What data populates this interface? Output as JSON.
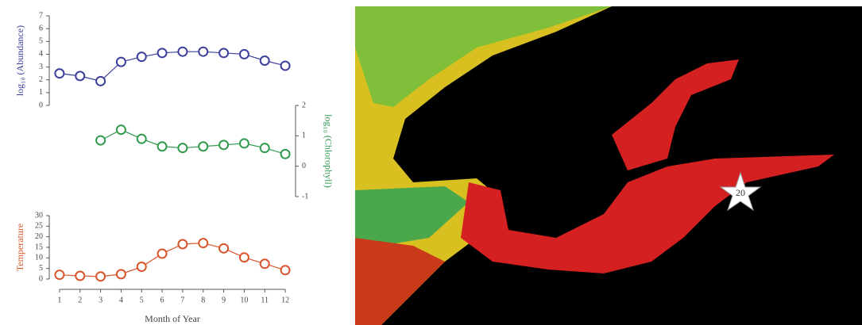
{
  "chart_data": [
    {
      "type": "line",
      "ylabel": "log₁₀ (Abundance)",
      "color": "#3b3f9c",
      "y_axis_side": "left",
      "x": [
        1,
        2,
        3,
        4,
        5,
        6,
        7,
        8,
        9,
        10,
        11,
        12
      ],
      "xlim": [
        0.5,
        12.5
      ],
      "values": [
        2.5,
        2.3,
        1.9,
        3.4,
        3.8,
        4.1,
        4.2,
        4.2,
        4.1,
        4.0,
        3.5,
        3.1
      ],
      "ylim": [
        0,
        7
      ],
      "yticks": [
        0,
        1,
        2,
        3,
        4,
        5,
        6,
        7
      ]
    },
    {
      "type": "line",
      "ylabel": "log₁₀ (Chlorophyll)",
      "color": "#2f9a4c",
      "y_axis_side": "right",
      "x": [
        1,
        2,
        3,
        4,
        5,
        6,
        7,
        8,
        9,
        10,
        11,
        12
      ],
      "xlim": [
        0.5,
        12.5
      ],
      "values": [
        null,
        null,
        0.85,
        1.2,
        0.9,
        0.65,
        0.6,
        0.65,
        0.7,
        0.75,
        0.6,
        0.4
      ],
      "ylim": [
        -1,
        2
      ],
      "yticks": [
        -1,
        0,
        1,
        2
      ]
    },
    {
      "type": "line",
      "ylabel": "Temperature",
      "xlabel": "Month of Year",
      "color": "#d9542a",
      "y_axis_side": "left",
      "x": [
        1,
        2,
        3,
        4,
        5,
        6,
        7,
        8,
        9,
        10,
        11,
        12
      ],
      "xlim": [
        0.5,
        12.5
      ],
      "xticks": [
        1,
        2,
        3,
        4,
        5,
        6,
        7,
        8,
        9,
        10,
        11,
        12
      ],
      "values": [
        2,
        1.5,
        1.2,
        2.3,
        5.8,
        12,
        16.5,
        17,
        14.5,
        10.2,
        7.2,
        4.2
      ],
      "ylim": [
        0,
        30
      ],
      "yticks": [
        0,
        5,
        10,
        15,
        20,
        25,
        30
      ]
    }
  ],
  "map": {
    "station_label": "20"
  }
}
